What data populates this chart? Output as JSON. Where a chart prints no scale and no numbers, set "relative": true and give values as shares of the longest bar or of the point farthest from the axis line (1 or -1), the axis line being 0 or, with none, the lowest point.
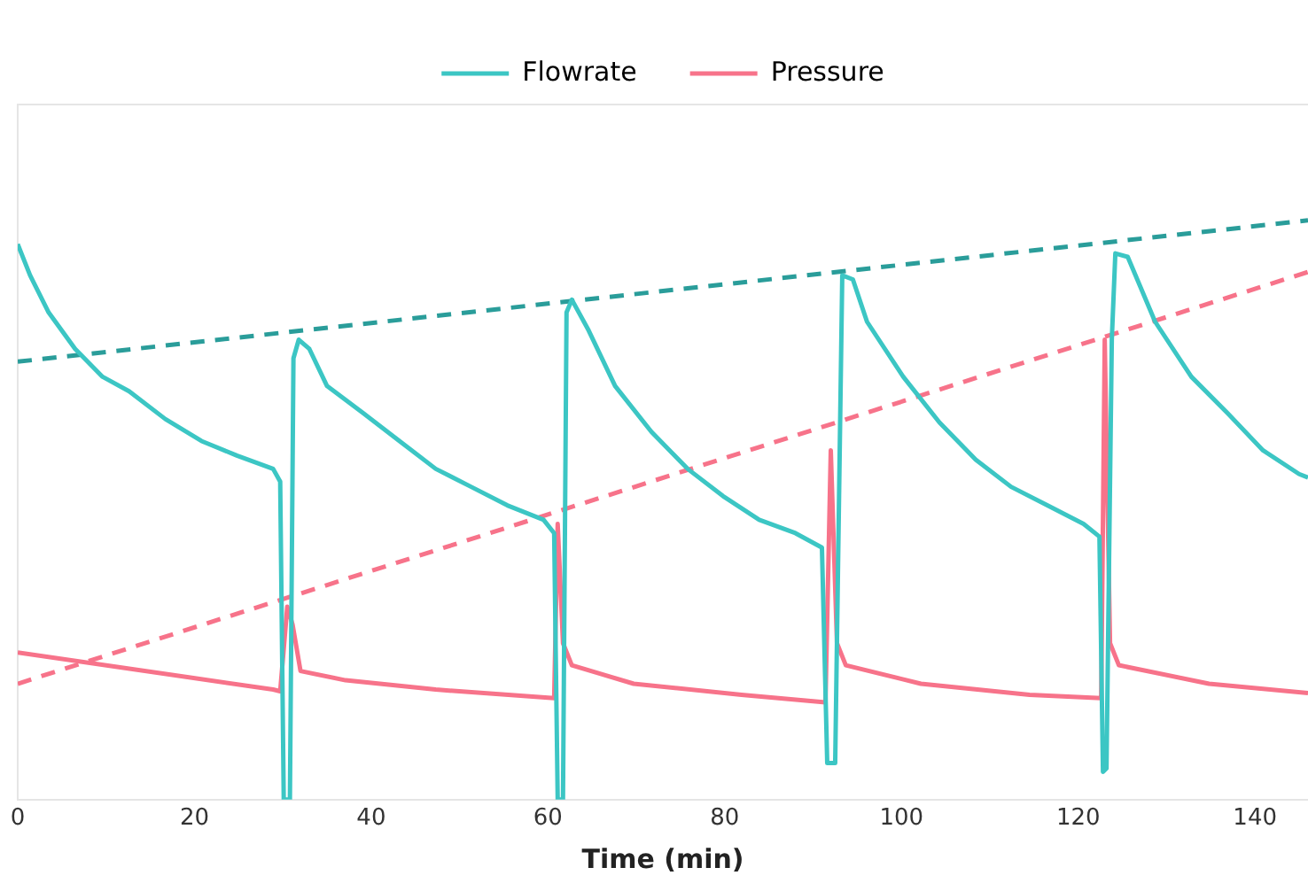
{
  "chart_data": {
    "type": "line",
    "xlabel": "Time (min)",
    "relative": true,
    "xlim": [
      0,
      146
    ],
    "xticks": [
      0,
      20,
      40,
      60,
      80,
      100,
      120,
      140
    ],
    "legend": "top",
    "grid": false,
    "marker": "none",
    "series": [
      {
        "name": "Flowrate",
        "color": "#3cc6c4",
        "line_style": "solid",
        "x": [
          0,
          1.4,
          3.5,
          6.5,
          9.6,
          12.6,
          16.7,
          20.8,
          24.8,
          28.9,
          29.7,
          30.1,
          30.8,
          31.2,
          31.8,
          33.0,
          35.0,
          39.1,
          43.2,
          47.3,
          51.3,
          55.4,
          59.5,
          60.7,
          61.1,
          61.7,
          62.1,
          62.7,
          64.6,
          67.6,
          71.7,
          75.8,
          79.8,
          83.9,
          88.0,
          91.0,
          91.6,
          92.5,
          93.3,
          94.5,
          96.1,
          100.2,
          104.3,
          108.4,
          112.4,
          116.5,
          120.6,
          122.4,
          122.8,
          123.2,
          123.8,
          124.2,
          125.6,
          128.7,
          132.8,
          136.9,
          140.9,
          145.0,
          146.0
        ],
        "values": [
          0.959,
          0.905,
          0.841,
          0.778,
          0.73,
          0.705,
          0.657,
          0.619,
          0.594,
          0.571,
          0.549,
          0,
          0,
          0.762,
          0.794,
          0.778,
          0.714,
          0.667,
          0.619,
          0.571,
          0.54,
          0.508,
          0.483,
          0.46,
          0,
          0,
          0.841,
          0.863,
          0.81,
          0.714,
          0.635,
          0.571,
          0.524,
          0.483,
          0.46,
          0.435,
          0.063,
          0.063,
          0.905,
          0.898,
          0.825,
          0.73,
          0.651,
          0.587,
          0.54,
          0.508,
          0.476,
          0.454,
          0.048,
          0.054,
          0.794,
          0.943,
          0.937,
          0.825,
          0.73,
          0.667,
          0.603,
          0.562,
          0.556
        ]
      },
      {
        "name": "Pressure",
        "color": "#f7738a",
        "line_style": "solid",
        "x": [
          0,
          28.9,
          29.7,
          30.5,
          31.1,
          32.0,
          37.1,
          47.3,
          60.7,
          61.1,
          61.7,
          62.7,
          69.7,
          81.9,
          91.4,
          92.0,
          92.7,
          93.7,
          102.2,
          114.5,
          122.6,
          123.0,
          123.6,
          124.6,
          134.8,
          146.0
        ],
        "values": [
          0.254,
          0.19,
          0.187,
          0.333,
          0.302,
          0.222,
          0.206,
          0.19,
          0.175,
          0.476,
          0.27,
          0.232,
          0.2,
          0.181,
          0.168,
          0.603,
          0.27,
          0.232,
          0.2,
          0.181,
          0.175,
          0.794,
          0.27,
          0.232,
          0.2,
          0.184
        ]
      },
      {
        "color": "#2a9d9a",
        "line_style": "dashed",
        "x": [
          0,
          146
        ],
        "values": [
          0.756,
          1.0
        ]
      },
      {
        "color": "#f7738a",
        "line_style": "dashed",
        "x": [
          0,
          146
        ],
        "values": [
          0.2,
          0.911
        ]
      }
    ]
  }
}
